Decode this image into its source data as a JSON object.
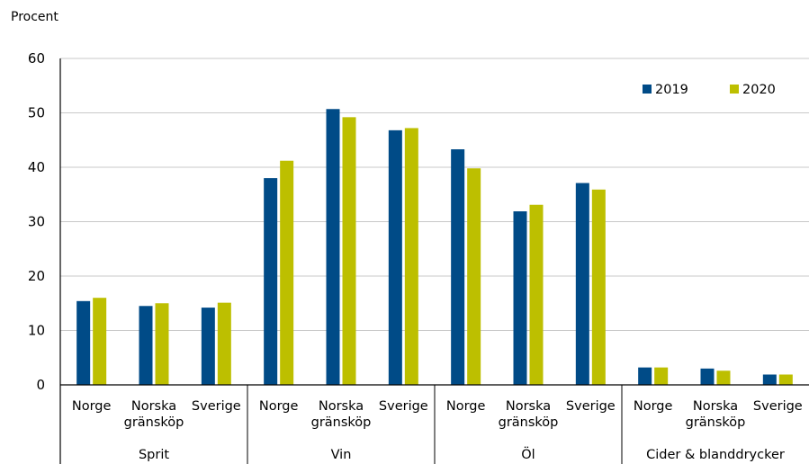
{
  "chart_data": {
    "type": "bar",
    "ylabel": "Procent",
    "ylim": [
      0,
      60
    ],
    "yticks": [
      0,
      10,
      20,
      30,
      40,
      50,
      60
    ],
    "grid": true,
    "legend_position": "top-right",
    "groups": [
      {
        "label": "Sprit",
        "categories": [
          [
            "Norge"
          ],
          [
            "Norska",
            "gränsköp"
          ],
          [
            "Sverige"
          ]
        ]
      },
      {
        "label": "Vin",
        "categories": [
          [
            "Norge"
          ],
          [
            "Norska",
            "gränsköp"
          ],
          [
            "Sverige"
          ]
        ]
      },
      {
        "label": "Öl",
        "categories": [
          [
            "Norge"
          ],
          [
            "Norska",
            "gränsköp"
          ],
          [
            "Sverige"
          ]
        ]
      },
      {
        "label": "Cider & blanddrycker",
        "categories": [
          [
            "Norge"
          ],
          [
            "Norska",
            "gränsköp"
          ],
          [
            "Sverige"
          ]
        ]
      }
    ],
    "series": [
      {
        "name": "2019",
        "color": "#004B87",
        "values": [
          15.4,
          14.5,
          14.2,
          38.0,
          50.7,
          46.8,
          43.3,
          31.9,
          37.1,
          3.2,
          3.0,
          1.9
        ]
      },
      {
        "name": "2020",
        "color": "#BDBF00",
        "values": [
          16.0,
          15.0,
          15.1,
          41.2,
          49.2,
          47.2,
          39.8,
          33.1,
          35.9,
          3.2,
          2.6,
          1.9
        ]
      }
    ]
  }
}
